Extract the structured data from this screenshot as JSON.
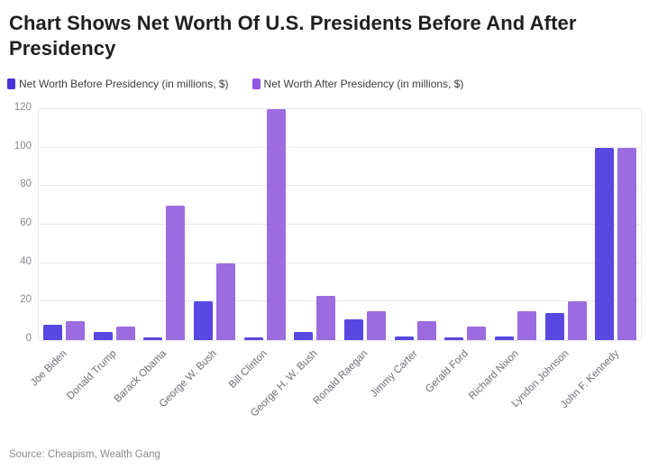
{
  "title": "Chart Shows Net Worth Of U.S. Presidents Before And After Presidency",
  "legend": [
    {
      "label": "Net Worth Before Presidency (in millions, $)",
      "color": "#4732da"
    },
    {
      "label": "Net Worth After Presidency (in millions, $)",
      "color": "#9257e3"
    }
  ],
  "source": "Source: Cheapism, Wealth Gang",
  "chart_data": {
    "type": "bar",
    "categories": [
      "Joe Biden",
      "Donald Trump",
      "Barack Obama",
      "George W. Bush",
      "Bill Clinton",
      "George H. W. Bush",
      "Ronald Raegan",
      "Jimmy Carter",
      "Gerald Ford",
      "Richard Nixon",
      "Lyndon Johnson",
      "John F. Kennedy"
    ],
    "series": [
      {
        "name": "Net Worth Before Presidency (in millions, $)",
        "color": "#5847e1",
        "values": [
          8,
          4,
          1.5,
          20,
          1.5,
          4,
          10.5,
          2,
          1.5,
          2,
          14,
          100
        ]
      },
      {
        "name": "Net Worth After Presidency (in millions, $)",
        "color": "#9c6be0",
        "values": [
          10,
          7,
          70,
          40,
          120,
          23,
          15,
          10,
          7,
          15,
          20,
          100
        ]
      }
    ],
    "title": "Chart Shows Net Worth Of U.S. Presidents Before And After Presidency",
    "xlabel": "",
    "ylabel": "",
    "ylim": [
      0,
      120
    ],
    "yticks": [
      0,
      20,
      40,
      60,
      80,
      100,
      120
    ],
    "grid": true,
    "legend_position": "top"
  }
}
